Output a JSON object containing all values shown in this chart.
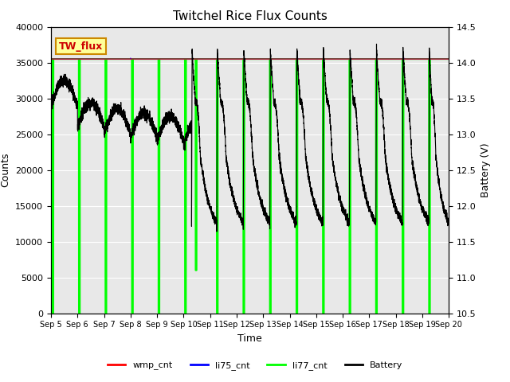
{
  "title": "Twitchel Rice Flux Counts",
  "xlabel": "Time",
  "ylabel_left": "Counts",
  "ylabel_right": "Battery (V)",
  "ylim_left": [
    0,
    40000
  ],
  "ylim_right": [
    10.5,
    14.5
  ],
  "xtick_labels": [
    "Sep 5",
    "Sep 6",
    "Sep 7",
    "Sep 8",
    "Sep 9",
    "Sep 10",
    "Sep 11",
    "Sep 12",
    "Sep 13",
    "Sep 14",
    "Sep 15",
    "Sep 16",
    "Sep 17",
    "Sep 18",
    "Sep 19",
    "Sep 20"
  ],
  "yticks_left": [
    0,
    5000,
    10000,
    15000,
    20000,
    25000,
    30000,
    35000,
    40000
  ],
  "yticks_right": [
    10.5,
    11.0,
    11.5,
    12.0,
    12.5,
    13.0,
    13.5,
    14.0,
    14.5
  ],
  "annotation_text": "TW_flux",
  "background_color": "#e8e8e8",
  "outer_background": "#ffffff",
  "li77_color": "#00ff00",
  "li75_color": "#0000ff",
  "wmp_color": "#ff0000",
  "battery_color": "#000000",
  "legend_colors": [
    "#ff0000",
    "#0000ff",
    "#00ff00",
    "#000000"
  ],
  "legend_labels": [
    "wmp_cnt",
    "li75_cnt",
    "li77_cnt",
    "Battery"
  ],
  "li77_flat_value": 35500,
  "wmp_flat_value": 35500,
  "li75_flat_value": 35500
}
